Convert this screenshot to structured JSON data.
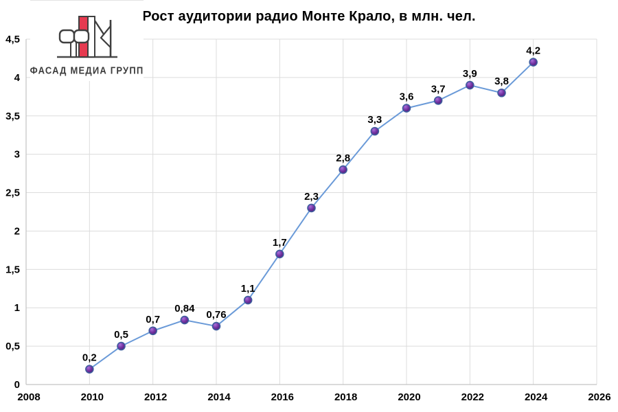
{
  "title": "Рост аудитории радио Монте Крало, в млн. чел.",
  "logo": {
    "text": "ФАСАД МЕДИА ГРУПП",
    "brand_red": "#e63a50",
    "outline_gray": "#3f3f3f"
  },
  "chart_data": {
    "type": "line",
    "title": "Рост аудитории радио Монте Крало, в млн. чел.",
    "x": [
      2010,
      2011,
      2012,
      2013,
      2014,
      2015,
      2016,
      2017,
      2018,
      2019,
      2020,
      2021,
      2022,
      2023,
      2024
    ],
    "values": [
      0.2,
      0.5,
      0.7,
      0.84,
      0.76,
      1.1,
      1.7,
      2.3,
      2.8,
      3.3,
      3.6,
      3.7,
      3.9,
      3.8,
      4.2
    ],
    "point_labels": [
      "0,2",
      "0,5",
      "0,7",
      "0,84",
      "0,76",
      "1,1",
      "1,7",
      "2,3",
      "2,8",
      "3,3",
      "3,6",
      "3,7",
      "3,9",
      "3,8",
      "4,2"
    ],
    "xlabel": "",
    "ylabel": "",
    "xlim": [
      2008,
      2026
    ],
    "ylim": [
      0,
      4.5
    ],
    "x_tick_step": 2,
    "y_tick_step": 0.5,
    "x_tick_labels": [
      "2008",
      "2010",
      "2012",
      "2014",
      "2016",
      "2018",
      "2020",
      "2022",
      "2024",
      "2026"
    ],
    "y_tick_labels": [
      "0",
      "0,5",
      "1",
      "1,5",
      "2",
      "2,5",
      "3",
      "3,5",
      "4",
      "4,5"
    ],
    "grid": true,
    "legend": false,
    "colors": {
      "line": "#6a9ad8",
      "marker_fill": "#7434a4",
      "marker_highlight": "#aa70da",
      "marker_dark": "#4e1f78",
      "marker_stroke": "#3f5d9e",
      "grid": "#dcdcdc",
      "axis": "#c3c3c3",
      "text": "#000000"
    }
  }
}
